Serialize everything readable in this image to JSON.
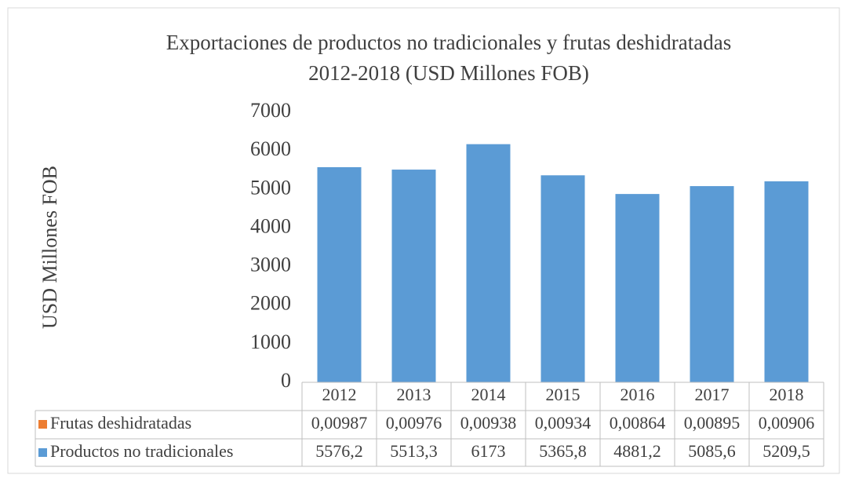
{
  "chart_data": {
    "type": "stacked_bar",
    "title": [
      "Exportaciones de productos no tradicionales y frutas deshidratadas",
      "2012-2018 (USD Millones FOB)"
    ],
    "y_label": "USD Millones FOB",
    "categories": [
      "2012",
      "2013",
      "2014",
      "2015",
      "2016",
      "2017",
      "2018"
    ],
    "series": [
      {
        "name": "Productos no tradicionales",
        "color": "#5b9bd5",
        "values": [
          5576.2,
          5513.3,
          6173,
          5365.8,
          4881.2,
          5085.6,
          5209.5
        ],
        "value_labels": [
          "5576,2",
          "5513,3",
          "6173",
          "5365,8",
          "4881,2",
          "5085,6",
          "5209,5"
        ]
      },
      {
        "name": "Frutas deshidratadas",
        "color": "#ed7d31",
        "values": [
          0.00987,
          0.00976,
          0.00938,
          0.00934,
          0.00864,
          0.00895,
          0.00906
        ],
        "value_labels": [
          "0,00987",
          "0,00976",
          "0,00938",
          "0,00934",
          "0,00864",
          "0,00895",
          "0,00906"
        ]
      }
    ],
    "ylim": [
      0,
      7000
    ],
    "yticks": [
      0,
      1000,
      2000,
      3000,
      4000,
      5000,
      6000,
      7000
    ],
    "grid": false
  }
}
